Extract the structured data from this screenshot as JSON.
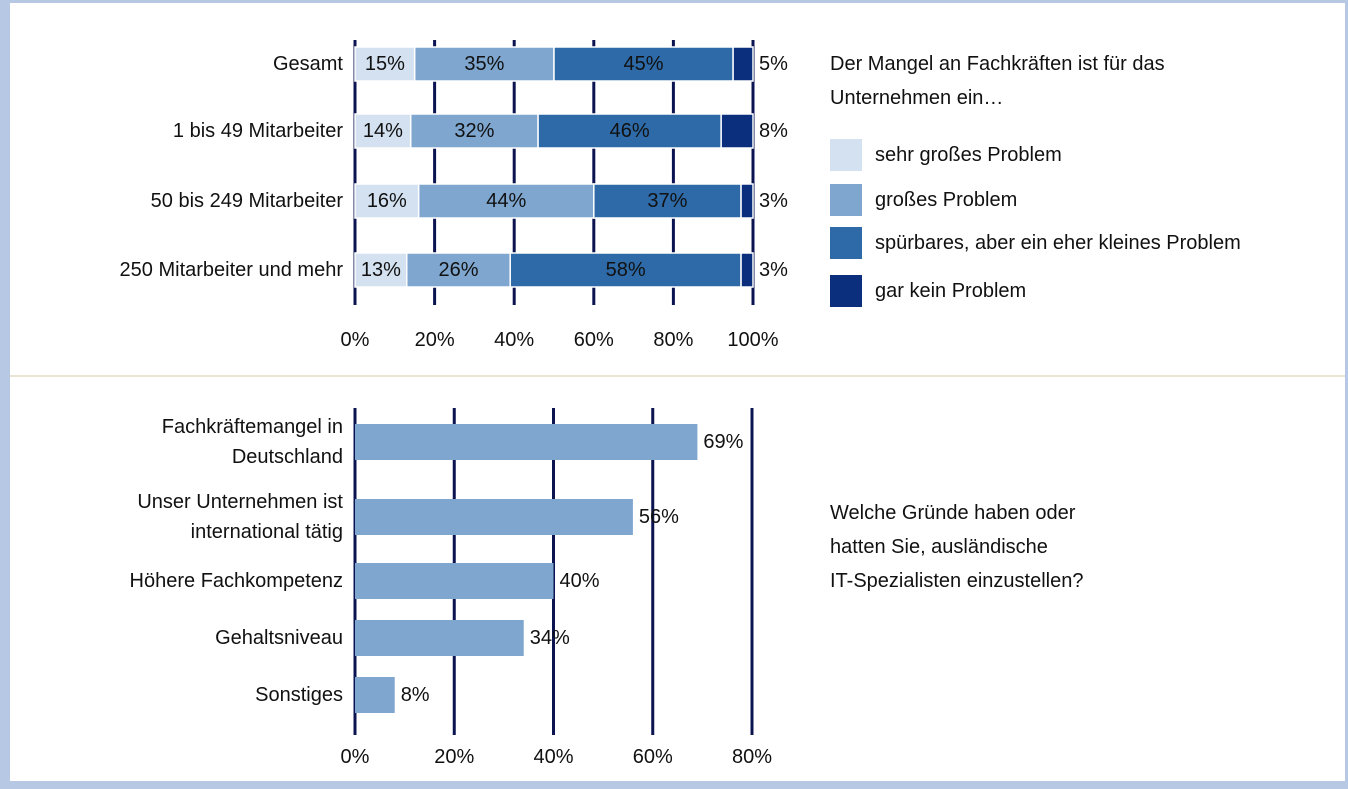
{
  "chart_data": [
    {
      "type": "bar",
      "orientation": "horizontal",
      "stacked": true,
      "title": "Der Mangel an Fachkräften ist für das\nUnternehmen ein…",
      "categories": [
        "Gesamt",
        "1 bis 49 Mitarbeiter",
        "50 bis 249 Mitarbeiter",
        "250 Mitarbeiter und mehr"
      ],
      "series": [
        {
          "name": "sehr großes Problem",
          "color": "#d3e1f0",
          "values": [
            15,
            14,
            16,
            13
          ],
          "value_labels": [
            "15%",
            "14%",
            "16%",
            "13%"
          ]
        },
        {
          "name": "großes Problem",
          "color": "#7ea6cf",
          "values": [
            35,
            32,
            44,
            26
          ],
          "value_labels": [
            "35%",
            "32%",
            "44%",
            "26%"
          ]
        },
        {
          "name": "spürbares, aber ein eher kleines Problem",
          "color": "#2d6aa7",
          "values": [
            45,
            46,
            37,
            58
          ],
          "value_labels": [
            "45%",
            "46%",
            "37%",
            "58%"
          ]
        },
        {
          "name": "gar kein Problem",
          "color": "#0b2f7d",
          "values": [
            5,
            8,
            3,
            3
          ],
          "value_labels": [
            "5%",
            "8%",
            "3%",
            "3%"
          ]
        }
      ],
      "xlim": [
        0,
        100
      ],
      "xticks": [
        {
          "value": 0,
          "label": "0%"
        },
        {
          "value": 20,
          "label": "20%"
        },
        {
          "value": 40,
          "label": "40%"
        },
        {
          "value": 60,
          "label": "60%"
        },
        {
          "value": 80,
          "label": "80%"
        },
        {
          "value": 100,
          "label": "100%"
        }
      ],
      "grid": true,
      "grid_color": "#0b1450",
      "legend": "right"
    },
    {
      "type": "bar",
      "orientation": "horizontal",
      "title": "Welche Gründe haben oder\nhatten Sie, ausländische\nIT-Spezialisten einzustellen?",
      "categories": [
        "Fachkräftemangel in\nDeutschland",
        "Unser Unternehmen ist\ninternational tätig",
        "Höhere Fachkompetenz",
        "Gehaltsniveau",
        "Sonstiges"
      ],
      "values": [
        69,
        56,
        40,
        34,
        8
      ],
      "value_labels": [
        "69%",
        "56%",
        "40%",
        "34%",
        "8%"
      ],
      "color": "#7ea6cf",
      "xlim": [
        0,
        80
      ],
      "xticks": [
        {
          "value": 0,
          "label": "0%"
        },
        {
          "value": 20,
          "label": "20%"
        },
        {
          "value": 40,
          "label": "40%"
        },
        {
          "value": 60,
          "label": "60%"
        },
        {
          "value": 80,
          "label": "80%"
        }
      ],
      "grid": true,
      "grid_color": "#0b1450"
    }
  ]
}
